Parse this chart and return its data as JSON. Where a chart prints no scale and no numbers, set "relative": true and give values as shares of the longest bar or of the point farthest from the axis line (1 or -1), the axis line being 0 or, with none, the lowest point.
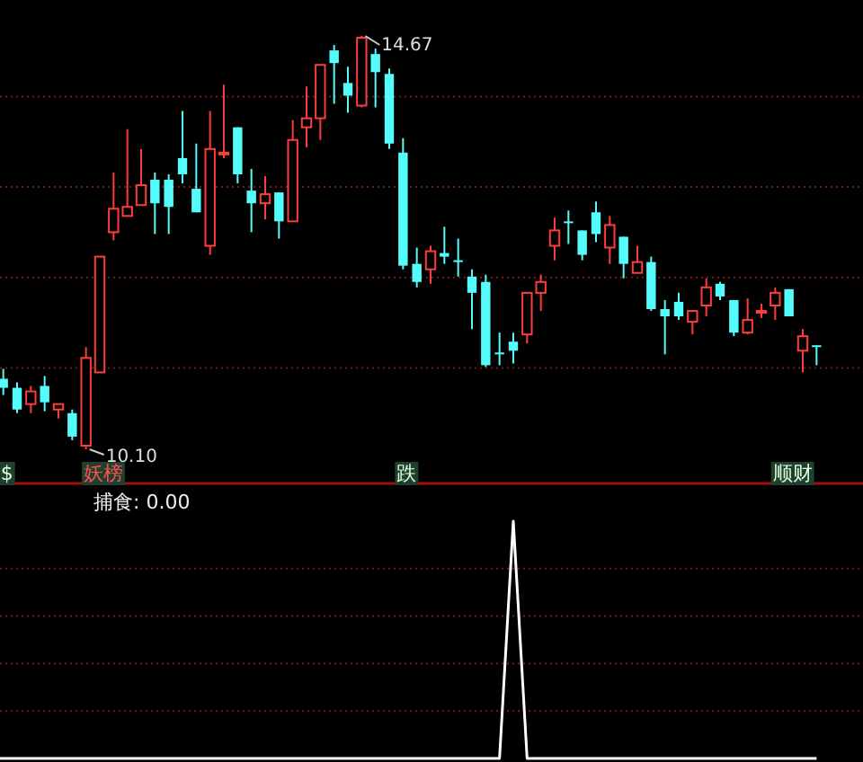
{
  "chart_data": [
    {
      "type": "candlestick",
      "categories": [
        null,
        null,
        null,
        null,
        null,
        null,
        null,
        null,
        null,
        null,
        null,
        null,
        null,
        null,
        null,
        null,
        null,
        null,
        null,
        null,
        null,
        null,
        null,
        null,
        null,
        null,
        null,
        null,
        null,
        null,
        null,
        null,
        null,
        null,
        null,
        null,
        null,
        null,
        null,
        null,
        null,
        null,
        null,
        null,
        null,
        null,
        null,
        null,
        null,
        null,
        null,
        null,
        null,
        null,
        null,
        null,
        null,
        null,
        null,
        null
      ],
      "ohlc": [
        [
          10.88,
          10.99,
          10.7,
          10.78
        ],
        [
          10.78,
          10.84,
          10.5,
          10.54
        ],
        [
          10.6,
          10.8,
          10.5,
          10.74
        ],
        [
          10.8,
          10.91,
          10.52,
          10.62
        ],
        [
          10.54,
          10.6,
          10.44,
          10.6
        ],
        [
          10.5,
          10.54,
          10.2,
          10.24
        ],
        [
          10.14,
          11.23,
          10.1,
          11.11
        ],
        [
          10.95,
          12.23,
          10.95,
          12.23
        ],
        [
          12.5,
          13.16,
          12.41,
          12.76
        ],
        [
          12.68,
          13.64,
          12.68,
          12.78
        ],
        [
          12.8,
          13.42,
          12.8,
          13.02
        ],
        [
          13.08,
          13.16,
          12.48,
          12.82
        ],
        [
          13.08,
          13.14,
          12.48,
          12.78
        ],
        [
          13.32,
          13.84,
          13.04,
          13.14
        ],
        [
          12.98,
          13.48,
          12.72,
          12.72
        ],
        [
          12.35,
          13.84,
          12.25,
          13.42
        ],
        [
          13.36,
          14.13,
          13.32,
          13.38
        ],
        [
          13.66,
          13.66,
          13.04,
          13.14
        ],
        [
          12.96,
          13.2,
          12.5,
          12.82
        ],
        [
          12.82,
          13.12,
          12.64,
          12.92
        ],
        [
          12.94,
          12.94,
          12.43,
          12.62
        ],
        [
          12.62,
          13.74,
          12.62,
          13.52
        ],
        [
          13.66,
          14.11,
          13.44,
          13.76
        ],
        [
          13.76,
          14.35,
          13.52,
          14.35
        ],
        [
          14.51,
          14.57,
          13.92,
          14.37
        ],
        [
          14.15,
          14.33,
          13.82,
          14.01
        ],
        [
          13.9,
          14.67,
          13.88,
          14.65
        ],
        [
          14.47,
          14.53,
          13.88,
          14.27
        ],
        [
          14.25,
          14.31,
          13.42,
          13.48
        ],
        [
          13.38,
          13.54,
          12.09,
          12.13
        ],
        [
          12.15,
          12.33,
          11.89,
          11.95
        ],
        [
          12.09,
          12.35,
          11.93,
          12.29
        ],
        [
          12.27,
          12.56,
          12.15,
          12.23
        ],
        [
          12.19,
          12.43,
          12.01,
          12.17
        ],
        [
          12.01,
          12.09,
          11.43,
          11.83
        ],
        [
          11.95,
          12.03,
          11.01,
          11.03
        ],
        [
          11.17,
          11.39,
          11.03,
          11.15
        ],
        [
          11.29,
          11.39,
          11.05,
          11.19
        ],
        [
          11.37,
          11.83,
          11.27,
          11.83
        ],
        [
          11.83,
          12.03,
          11.63,
          11.95
        ],
        [
          12.35,
          12.66,
          12.19,
          12.52
        ],
        [
          12.62,
          12.74,
          12.37,
          12.6
        ],
        [
          12.52,
          12.52,
          12.19,
          12.25
        ],
        [
          12.72,
          12.84,
          12.39,
          12.48
        ],
        [
          12.33,
          12.68,
          12.15,
          12.58
        ],
        [
          12.45,
          12.45,
          11.99,
          12.15
        ],
        [
          12.05,
          12.35,
          12.05,
          12.17
        ],
        [
          12.17,
          12.23,
          11.63,
          11.65
        ],
        [
          11.65,
          11.75,
          11.15,
          11.57
        ],
        [
          11.73,
          11.83,
          11.53,
          11.57
        ],
        [
          11.51,
          11.63,
          11.37,
          11.63
        ],
        [
          11.69,
          11.99,
          11.57,
          11.89
        ],
        [
          11.93,
          11.95,
          11.75,
          11.79
        ],
        [
          11.75,
          11.75,
          11.35,
          11.39
        ],
        [
          11.39,
          11.77,
          11.37,
          11.53
        ],
        [
          11.61,
          11.71,
          11.55,
          11.63
        ],
        [
          11.69,
          11.89,
          11.53,
          11.83
        ],
        [
          11.87,
          11.87,
          11.57,
          11.57
        ],
        [
          11.19,
          11.43,
          10.95,
          11.35
        ],
        [
          11.25,
          11.25,
          11.03,
          11.23
        ]
      ],
      "colors": [
        "#54fcfc",
        "#54fcfc",
        "#ff3c3c",
        "#54fcfc",
        "#ff3c3c",
        "#54fcfc",
        "#ff3c3c",
        "#ff3c3c",
        "#ff3c3c",
        "#ff3c3c",
        "#ff3c3c",
        "#54fcfc",
        "#54fcfc",
        "#54fcfc",
        "#54fcfc",
        "#ff3c3c",
        "#ff3c3c",
        "#54fcfc",
        "#54fcfc",
        "#ff3c3c",
        "#54fcfc",
        "#ff3c3c",
        "#ff3c3c",
        "#ff3c3c",
        "#54fcfc",
        "#54fcfc",
        "#ff3c3c",
        "#54fcfc",
        "#54fcfc",
        "#54fcfc",
        "#54fcfc",
        "#ff3c3c",
        "#54fcfc",
        "#54fcfc",
        "#54fcfc",
        "#54fcfc",
        "#54fcfc",
        "#54fcfc",
        "#ff3c3c",
        "#ff3c3c",
        "#ff3c3c",
        "#54fcfc",
        "#54fcfc",
        "#54fcfc",
        "#ff3c3c",
        "#54fcfc",
        "#ff3c3c",
        "#54fcfc",
        "#54fcfc",
        "#54fcfc",
        "#ff3c3c",
        "#ff3c3c",
        "#54fcfc",
        "#54fcfc",
        "#ff3c3c",
        "#ff3c3c",
        "#ff3c3c",
        "#54fcfc",
        "#ff3c3c",
        "#54fcfc"
      ],
      "value_labels": [
        "$",
        null,
        null,
        null,
        null,
        null,
        "10.10",
        "妖榜",
        null,
        null,
        null,
        null,
        null,
        null,
        null,
        null,
        null,
        null,
        null,
        null,
        null,
        null,
        null,
        null,
        null,
        null,
        "14.67",
        null,
        null,
        "跌",
        null,
        null,
        null,
        null,
        null,
        null,
        null,
        null,
        null,
        null,
        null,
        null,
        null,
        null,
        null,
        null,
        null,
        null,
        null,
        null,
        null,
        null,
        null,
        null,
        null,
        null,
        null,
        "顺财",
        null,
        null
      ],
      "yticks": [
        {
          "value": 11,
          "label": null
        },
        {
          "value": 12,
          "label": null
        },
        {
          "value": 13,
          "label": null
        },
        {
          "value": 14,
          "label": null
        }
      ],
      "grid": "y"
    },
    {
      "type": "line",
      "title": "捕食: 0.00",
      "categories": [
        null,
        null,
        null,
        null,
        null,
        null,
        null,
        null,
        null,
        null,
        null,
        null,
        null,
        null,
        null,
        null,
        null,
        null,
        null,
        null,
        null,
        null,
        null,
        null,
        null,
        null,
        null,
        null,
        null,
        null,
        null,
        null,
        null,
        null,
        null,
        null,
        null,
        null,
        null,
        null,
        null,
        null,
        null,
        null,
        null,
        null,
        null,
        null,
        null,
        null,
        null,
        null,
        null,
        null,
        null,
        null,
        null,
        null,
        null,
        null
      ],
      "series": [
        {
          "color": "#ffffff",
          "values": [
            0,
            0,
            0,
            0,
            0,
            0,
            0,
            0,
            0,
            0,
            0,
            0,
            0,
            0,
            0,
            0,
            0,
            0,
            0,
            0,
            0,
            0,
            0,
            0,
            0,
            0,
            0,
            0,
            0,
            0,
            0,
            0,
            0,
            0,
            0,
            0,
            0,
            1,
            0,
            0,
            0,
            0,
            0,
            0,
            0,
            0,
            0,
            0,
            0,
            0,
            0,
            0,
            0,
            0,
            0,
            0,
            0,
            0,
            0,
            0
          ]
        }
      ],
      "relative": true,
      "ref_lines": [
        {
          "axis": "y",
          "value": 0.2,
          "color": "#7a1818",
          "line_style": "dotted"
        },
        {
          "axis": "y",
          "value": 0.4,
          "color": "#7a1818",
          "line_style": "dotted"
        },
        {
          "axis": "y",
          "value": 0.6,
          "color": "#7a1818",
          "line_style": "dotted"
        },
        {
          "axis": "y",
          "value": 0.8,
          "color": "#7a1818",
          "line_style": "dotted"
        }
      ]
    }
  ]
}
